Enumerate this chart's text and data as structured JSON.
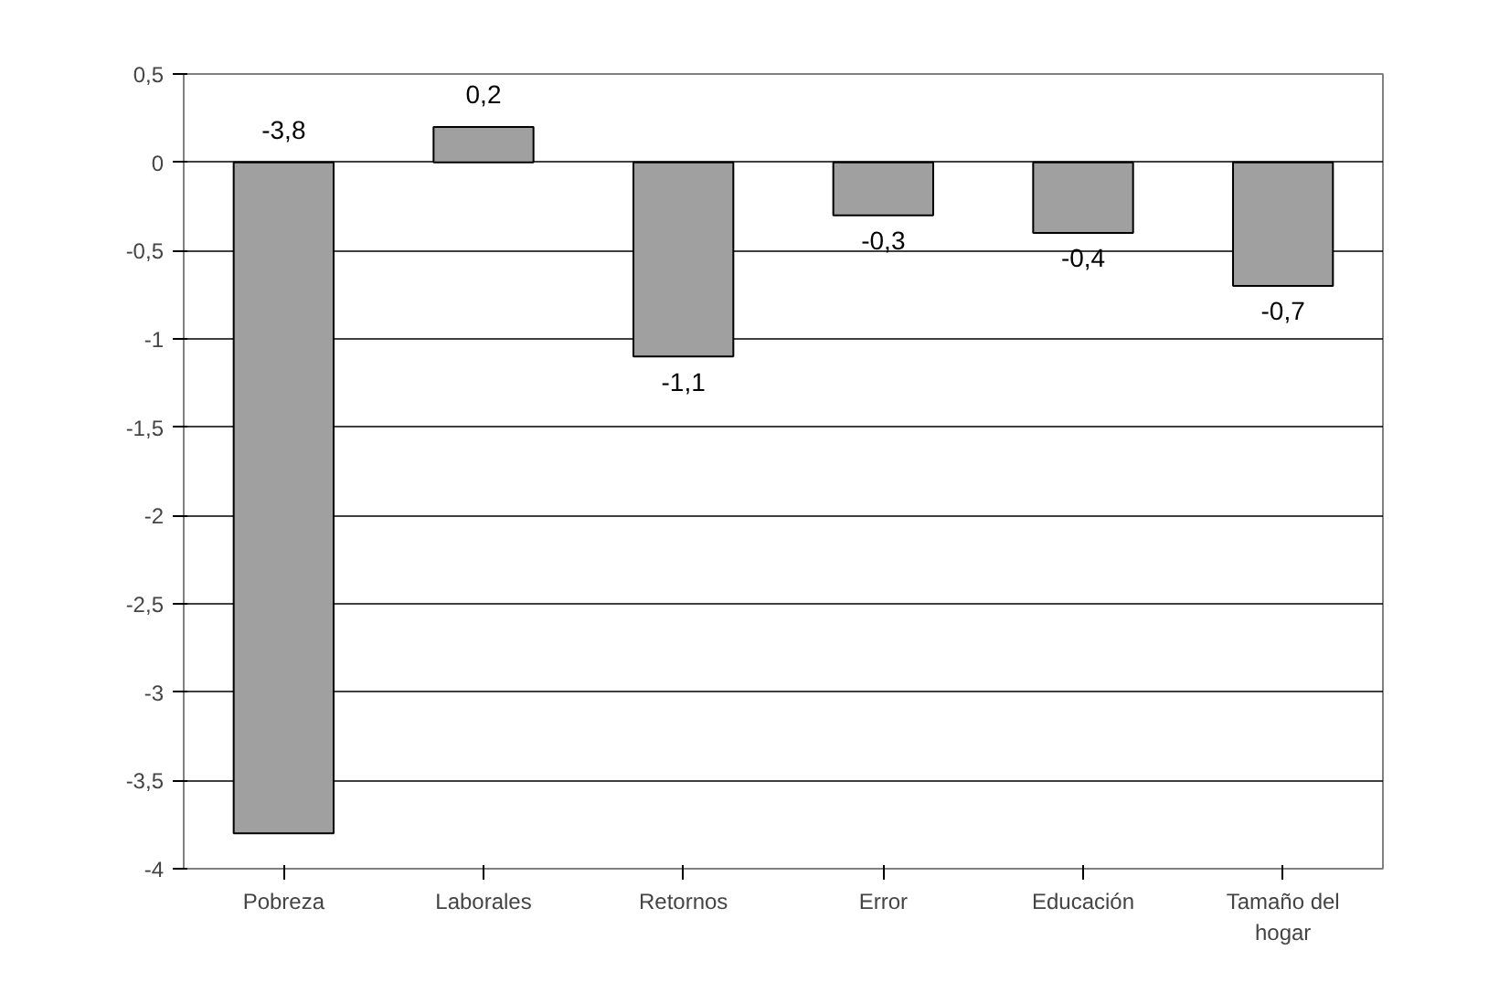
{
  "chart_data": {
    "type": "bar",
    "categories": [
      "Pobreza",
      "Laborales",
      "Retornos",
      "Error",
      "Educación",
      "Tamaño del hogar"
    ],
    "values": [
      -3.8,
      0.2,
      -1.1,
      -0.3,
      -0.4,
      -0.7
    ],
    "value_labels": [
      "-3,8",
      "0,2",
      "-1,1",
      "-0,3",
      "-0,4",
      "-0,7"
    ],
    "color": "#a0a0a0",
    "ylim": [
      -4,
      0.5
    ],
    "yticks": [
      {
        "value": 0.5,
        "label": "0,5"
      },
      0,
      {
        "value": -0.5,
        "label": "-0,5"
      },
      -1,
      {
        "value": -1.5,
        "label": "-1,5"
      },
      -2,
      {
        "value": -2.5,
        "label": "-2,5"
      },
      -3,
      {
        "value": -3.5,
        "label": "-3,5"
      },
      -4
    ],
    "grid": "y"
  }
}
